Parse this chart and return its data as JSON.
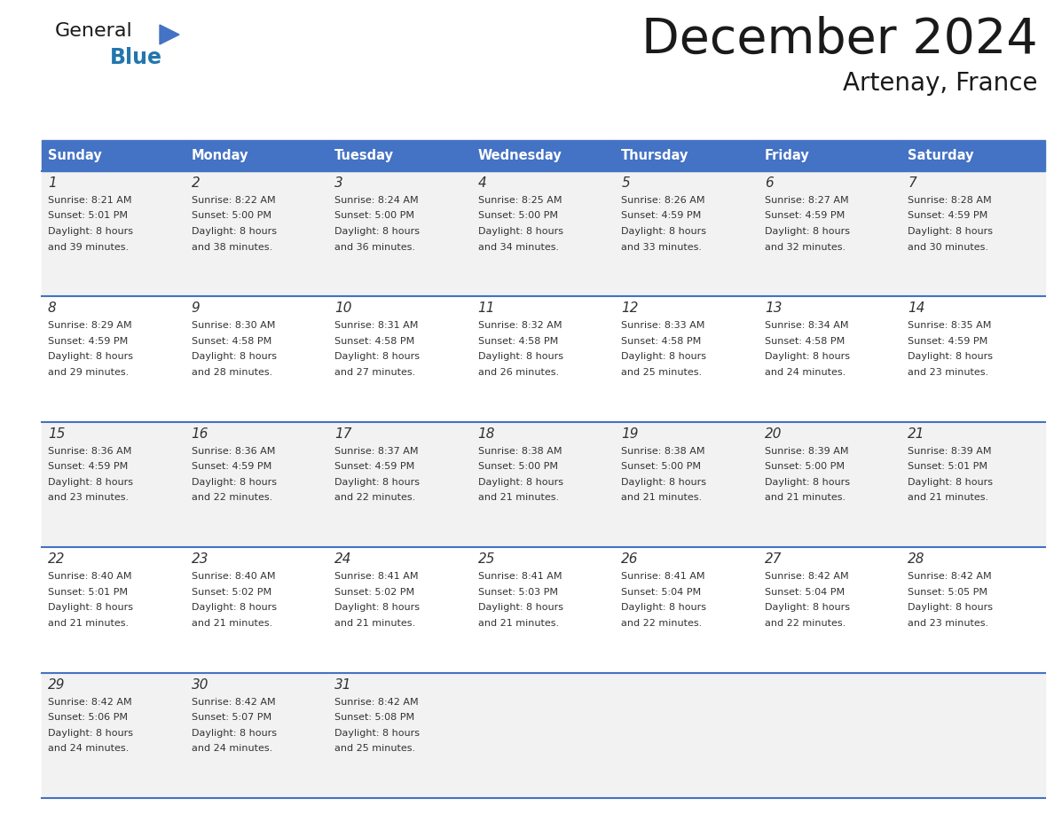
{
  "title": "December 2024",
  "subtitle": "Artenay, France",
  "header_color": "#4472C4",
  "header_text_color": "#FFFFFF",
  "days_of_week": [
    "Sunday",
    "Monday",
    "Tuesday",
    "Wednesday",
    "Thursday",
    "Friday",
    "Saturday"
  ],
  "bg_color": "#FFFFFF",
  "row_bg_colors": [
    "#F2F2F2",
    "#FFFFFF",
    "#F2F2F2",
    "#FFFFFF",
    "#F2F2F2"
  ],
  "cell_text_color": "#333333",
  "line_color": "#4472C4",
  "logo_triangle_color": "#4472C4",
  "logo_black_color": "#1a1a1a",
  "logo_blue_color": "#2176AE",
  "title_color": "#1a1a1a",
  "calendar_data": [
    [
      {
        "day": 1,
        "sunrise": "8:21 AM",
        "sunset": "5:01 PM",
        "daylight_hours": 8,
        "daylight_minutes": 39
      },
      {
        "day": 2,
        "sunrise": "8:22 AM",
        "sunset": "5:00 PM",
        "daylight_hours": 8,
        "daylight_minutes": 38
      },
      {
        "day": 3,
        "sunrise": "8:24 AM",
        "sunset": "5:00 PM",
        "daylight_hours": 8,
        "daylight_minutes": 36
      },
      {
        "day": 4,
        "sunrise": "8:25 AM",
        "sunset": "5:00 PM",
        "daylight_hours": 8,
        "daylight_minutes": 34
      },
      {
        "day": 5,
        "sunrise": "8:26 AM",
        "sunset": "4:59 PM",
        "daylight_hours": 8,
        "daylight_minutes": 33
      },
      {
        "day": 6,
        "sunrise": "8:27 AM",
        "sunset": "4:59 PM",
        "daylight_hours": 8,
        "daylight_minutes": 32
      },
      {
        "day": 7,
        "sunrise": "8:28 AM",
        "sunset": "4:59 PM",
        "daylight_hours": 8,
        "daylight_minutes": 30
      }
    ],
    [
      {
        "day": 8,
        "sunrise": "8:29 AM",
        "sunset": "4:59 PM",
        "daylight_hours": 8,
        "daylight_minutes": 29
      },
      {
        "day": 9,
        "sunrise": "8:30 AM",
        "sunset": "4:58 PM",
        "daylight_hours": 8,
        "daylight_minutes": 28
      },
      {
        "day": 10,
        "sunrise": "8:31 AM",
        "sunset": "4:58 PM",
        "daylight_hours": 8,
        "daylight_minutes": 27
      },
      {
        "day": 11,
        "sunrise": "8:32 AM",
        "sunset": "4:58 PM",
        "daylight_hours": 8,
        "daylight_minutes": 26
      },
      {
        "day": 12,
        "sunrise": "8:33 AM",
        "sunset": "4:58 PM",
        "daylight_hours": 8,
        "daylight_minutes": 25
      },
      {
        "day": 13,
        "sunrise": "8:34 AM",
        "sunset": "4:58 PM",
        "daylight_hours": 8,
        "daylight_minutes": 24
      },
      {
        "day": 14,
        "sunrise": "8:35 AM",
        "sunset": "4:59 PM",
        "daylight_hours": 8,
        "daylight_minutes": 23
      }
    ],
    [
      {
        "day": 15,
        "sunrise": "8:36 AM",
        "sunset": "4:59 PM",
        "daylight_hours": 8,
        "daylight_minutes": 23
      },
      {
        "day": 16,
        "sunrise": "8:36 AM",
        "sunset": "4:59 PM",
        "daylight_hours": 8,
        "daylight_minutes": 22
      },
      {
        "day": 17,
        "sunrise": "8:37 AM",
        "sunset": "4:59 PM",
        "daylight_hours": 8,
        "daylight_minutes": 22
      },
      {
        "day": 18,
        "sunrise": "8:38 AM",
        "sunset": "5:00 PM",
        "daylight_hours": 8,
        "daylight_minutes": 21
      },
      {
        "day": 19,
        "sunrise": "8:38 AM",
        "sunset": "5:00 PM",
        "daylight_hours": 8,
        "daylight_minutes": 21
      },
      {
        "day": 20,
        "sunrise": "8:39 AM",
        "sunset": "5:00 PM",
        "daylight_hours": 8,
        "daylight_minutes": 21
      },
      {
        "day": 21,
        "sunrise": "8:39 AM",
        "sunset": "5:01 PM",
        "daylight_hours": 8,
        "daylight_minutes": 21
      }
    ],
    [
      {
        "day": 22,
        "sunrise": "8:40 AM",
        "sunset": "5:01 PM",
        "daylight_hours": 8,
        "daylight_minutes": 21
      },
      {
        "day": 23,
        "sunrise": "8:40 AM",
        "sunset": "5:02 PM",
        "daylight_hours": 8,
        "daylight_minutes": 21
      },
      {
        "day": 24,
        "sunrise": "8:41 AM",
        "sunset": "5:02 PM",
        "daylight_hours": 8,
        "daylight_minutes": 21
      },
      {
        "day": 25,
        "sunrise": "8:41 AM",
        "sunset": "5:03 PM",
        "daylight_hours": 8,
        "daylight_minutes": 21
      },
      {
        "day": 26,
        "sunrise": "8:41 AM",
        "sunset": "5:04 PM",
        "daylight_hours": 8,
        "daylight_minutes": 22
      },
      {
        "day": 27,
        "sunrise": "8:42 AM",
        "sunset": "5:04 PM",
        "daylight_hours": 8,
        "daylight_minutes": 22
      },
      {
        "day": 28,
        "sunrise": "8:42 AM",
        "sunset": "5:05 PM",
        "daylight_hours": 8,
        "daylight_minutes": 23
      }
    ],
    [
      {
        "day": 29,
        "sunrise": "8:42 AM",
        "sunset": "5:06 PM",
        "daylight_hours": 8,
        "daylight_minutes": 24
      },
      {
        "day": 30,
        "sunrise": "8:42 AM",
        "sunset": "5:07 PM",
        "daylight_hours": 8,
        "daylight_minutes": 24
      },
      {
        "day": 31,
        "sunrise": "8:42 AM",
        "sunset": "5:08 PM",
        "daylight_hours": 8,
        "daylight_minutes": 25
      },
      null,
      null,
      null,
      null
    ]
  ]
}
